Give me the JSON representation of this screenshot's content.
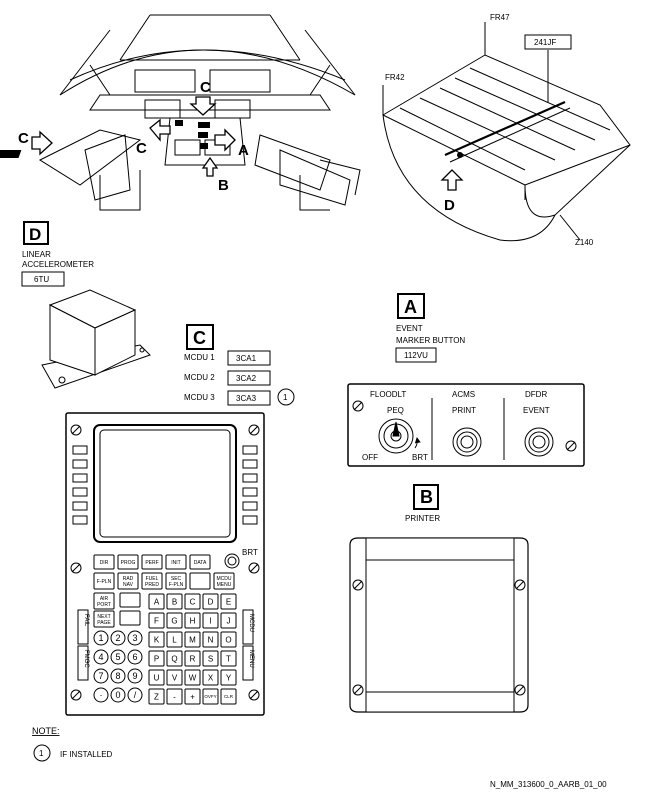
{
  "overview": {
    "callouts": [
      "C",
      "C",
      "C",
      "A",
      "B"
    ],
    "frame_labels": [
      "FR47",
      "FR42",
      "Z140"
    ],
    "ident_241": "241JF",
    "callout_d": "D"
  },
  "detail_d": {
    "letter": "D",
    "title_line1": "LINEAR",
    "title_line2": "ACCELEROMETER",
    "ident": "6TU"
  },
  "detail_a": {
    "letter": "A",
    "title_line1": "EVENT",
    "title_line2": "MARKER BUTTON",
    "ident": "112VU",
    "panel_labels": [
      "FLOODLT",
      "ACMS",
      "DFDR"
    ],
    "knob_label": "PEQ",
    "knob_off": "OFF",
    "knob_brt": "BRT",
    "button_labels": [
      "PRINT",
      "EVENT"
    ]
  },
  "detail_b": {
    "letter": "B",
    "title": "PRINTER"
  },
  "detail_c": {
    "letter": "C",
    "rows": [
      {
        "label": "MCDU 1",
        "ident": "3CA1"
      },
      {
        "label": "MCDU 2",
        "ident": "3CA2"
      },
      {
        "label": "MCDU 3",
        "ident": "3CA3",
        "note": "1"
      }
    ],
    "brt": "BRT",
    "func_row1": [
      "DIR",
      "PROG",
      "PERF",
      "INIT",
      "DATA"
    ],
    "func_row2": [
      "F-PLN",
      "RAD NAV",
      "FUEL PRED",
      "SEC F-PLN",
      "",
      "MCDU MENU"
    ],
    "func_left": [
      "AIR PORT",
      "NEXT PAGE"
    ],
    "letters": [
      "A",
      "B",
      "C",
      "D",
      "E",
      "F",
      "G",
      "H",
      "I",
      "J",
      "K",
      "L",
      "M",
      "N",
      "O",
      "P",
      "Q",
      "R",
      "S",
      "T",
      "U",
      "V",
      "W",
      "X",
      "Y",
      "Z",
      "-",
      "+",
      "OVFY",
      "CLR"
    ],
    "numbers": [
      "1",
      "2",
      "3",
      "4",
      "5",
      "6",
      "7",
      "8",
      "9",
      "·",
      "0",
      "/"
    ],
    "annunciators_left": [
      "FAIL",
      "FMGC"
    ],
    "annunciators_right": [
      "MCDU",
      "MENU"
    ]
  },
  "notes": {
    "heading": "NOTE:",
    "items": [
      {
        "num": "1",
        "text": "IF INSTALLED"
      }
    ]
  },
  "footer_ref": "N_MM_313600_0_AARB_01_00"
}
